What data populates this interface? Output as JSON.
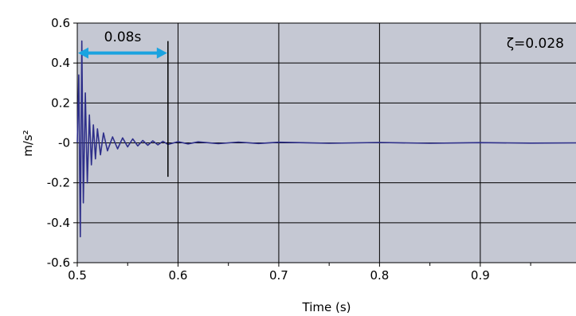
{
  "chart_data": {
    "type": "line",
    "xlabel": "Time (s)",
    "ylabel": "m/s²",
    "xlim": [
      0.5,
      0.995
    ],
    "ylim": [
      -0.6,
      0.6
    ],
    "x_ticks": [
      0.5,
      0.6,
      0.7,
      0.8,
      0.9
    ],
    "x_tick_labels": [
      "0.5",
      "0.6",
      "0.7",
      "0.8",
      "0.9"
    ],
    "y_ticks": [
      0.6,
      0.4,
      0.2,
      0,
      -0.2,
      -0.4,
      -0.6
    ],
    "y_tick_labels": [
      "0.6",
      "0.4",
      "0.2",
      "-0",
      "-0.2",
      "-0.4",
      "-0.6"
    ],
    "grid": true,
    "colors": {
      "plot_background": "#c5c8d3",
      "signal": "#2e2f8a",
      "arrow": "#1aa3e0",
      "grid": "#000000"
    },
    "series": [
      {
        "x": [
          0.5,
          0.5015,
          0.503,
          0.5045,
          0.506,
          0.508,
          0.51,
          0.512,
          0.514,
          0.516,
          0.518,
          0.52,
          0.523,
          0.526,
          0.53,
          0.535,
          0.54,
          0.545,
          0.55,
          0.555,
          0.56,
          0.565,
          0.57,
          0.575,
          0.58,
          0.585,
          0.59,
          0.6,
          0.61,
          0.62,
          0.64,
          0.66,
          0.68,
          0.7,
          0.75,
          0.8,
          0.85,
          0.9,
          0.95,
          0.995
        ],
        "values": [
          0.0,
          0.34,
          -0.47,
          0.51,
          -0.3,
          0.25,
          -0.2,
          0.14,
          -0.11,
          0.09,
          -0.08,
          0.07,
          -0.06,
          0.05,
          -0.04,
          0.03,
          -0.03,
          0.025,
          -0.02,
          0.02,
          -0.015,
          0.012,
          -0.012,
          0.01,
          -0.01,
          0.008,
          -0.008,
          0.006,
          -0.005,
          0.005,
          -0.004,
          0.004,
          -0.003,
          0.003,
          -0.002,
          0.002,
          -0.002,
          0.001,
          -0.001,
          0.0
        ]
      }
    ],
    "annotations": {
      "interval_label": "0.08s",
      "interval_start": 0.5,
      "interval_end": 0.59,
      "damping_label": "ζ=0.028"
    }
  }
}
